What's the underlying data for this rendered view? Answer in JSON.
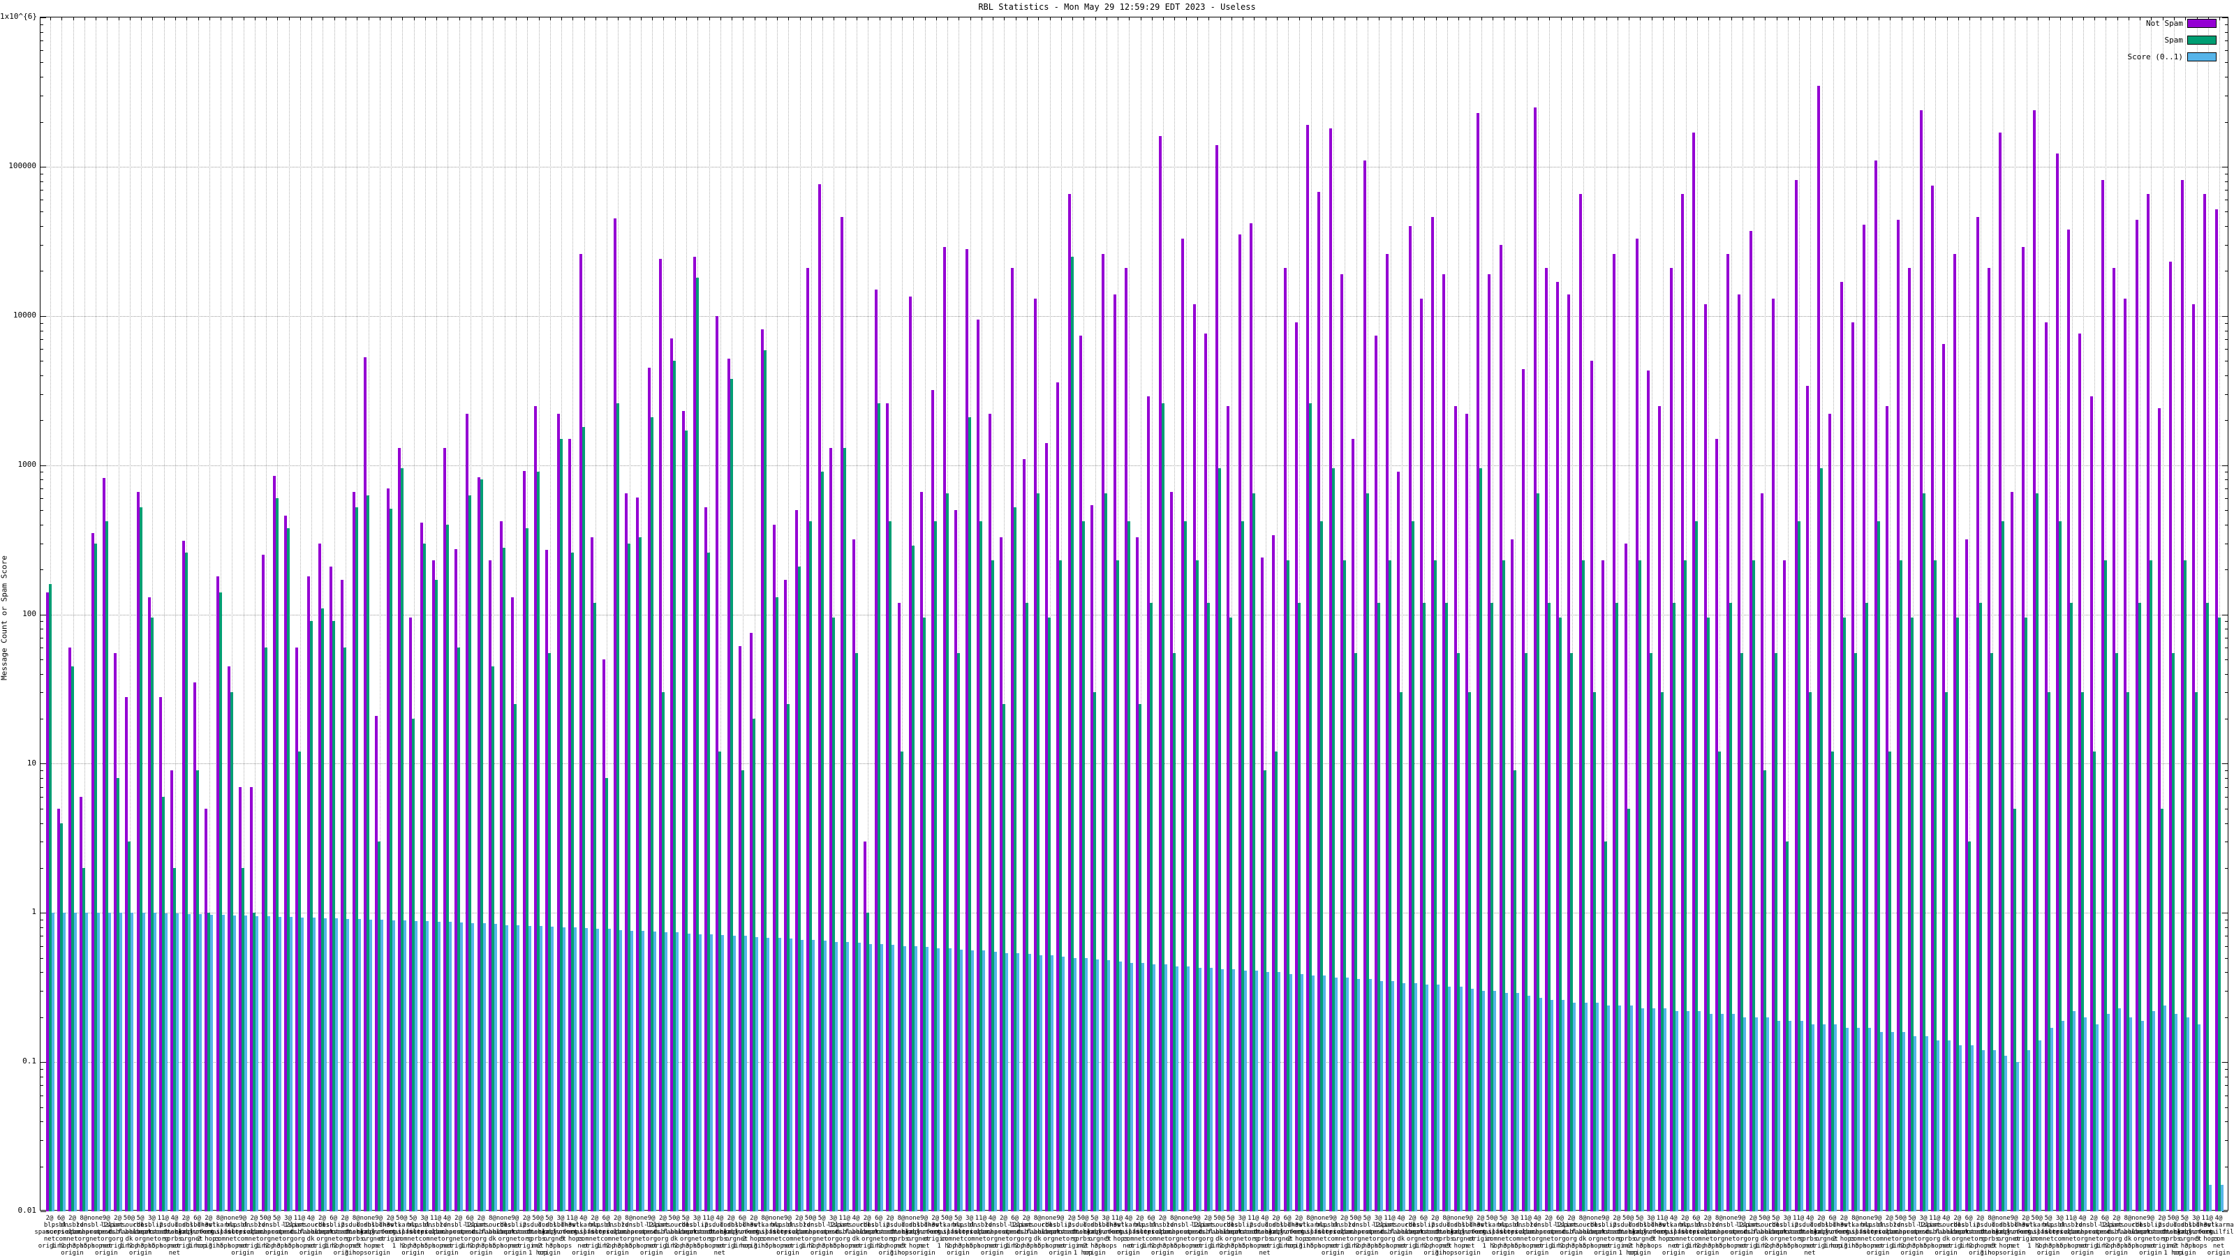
{
  "title": "RBL Statistics - Mon May 29 12:59:29 EDT 2023 - Useless",
  "y_axis": {
    "label": "Message Count or Spam Score",
    "tick_labels": [
      "1x10^{6}",
      "100000",
      "10000",
      "1000",
      "100",
      "10",
      "1",
      "0.1",
      "0.01"
    ]
  },
  "legend": [
    {
      "label": "Not Spam",
      "color": "#9400d3"
    },
    {
      "label": "Spam",
      "color": "#009e73"
    },
    {
      "label": "Score (0..1)",
      "color": "#56b4e9"
    }
  ],
  "colors": {
    "not_spam": "#9400d3",
    "spam": "#009e73",
    "score": "#56b4e9",
    "grid": "#9a9a9a",
    "background": "#ffffff"
  },
  "chart_data": {
    "type": "bar",
    "title": "RBL Statistics - Mon May 29 12:59:29 EDT 2023 - Useless",
    "xlabel": "",
    "ylabel": "Message Count or Spam Score",
    "y_scale": "log",
    "ylim": [
      0.01,
      1000000
    ],
    "grid": true,
    "legend_position": "top-right",
    "categories": [
      "2@\nbl.\nspamcop.\nnet\norigin",
      "6@\npsbl.\nsurriel.\ncom\n1 hop",
      "2@\ndnsbl.\nsorbs.\nnet\n2 hops\norigin",
      "8@\nzen.\nspamhaus.\norg\n3 hops",
      "none\ndnsbl-1.\nuceprotect.\nnet\n5 hops",
      "9@\nl2.\napews.\norg\nnet\norigin",
      "2@\nlist.\ndsbl.\norg\norigin",
      "50@\nspamsources.\nfabel.\ndk\n1 hop",
      "5@\ncbl.\nabuseat.\norg\n2 hops\norigin",
      "3@\ndnsbl-2.\nuceprotect.\nnet\n3 hops",
      "11@\nips.\nbackscatterer.\norg\n5 hops",
      "4@\ndul.\ndnsbl.\nsorbs.\nnet\nnet\norigin",
      "2@\ndnsbl.\nnjabl.\norg\norigin",
      "6@\ndnsbl-3.\nuceprotect.\nnet\n1 hop",
      "2@\ndnswl.\norg\n2 hops\norigin",
      "8@\nhostkarma.\njunkemailfilter.\ncom\n3 hops",
      "none\nbl.\nspamcop.\nnet\n5 hops",
      "9@\npsbl.\nsurriel.\ncom\nnet\norigin",
      "2@\ndnsbl.\nsorbs.\nnet\norigin",
      "50@\nzen.\nspamhaus.\norg\n1 hop",
      "5@\ndnsbl-1.\nuceprotect.\nnet\n2 hops\norigin",
      "3@\nl2.\napews.\norg\n3 hops",
      "11@\nlist.\ndsbl.\norg\n5 hops",
      "4@\nspamsources.\nfabel.\ndk\nnet\norigin",
      "2@\ncbl.\nabuseat.\norg\norigin",
      "6@\ndnsbl-2.\nuceprotect.\nnet\n1 hop",
      "2@\nips.\nbackscatterer.\norg\n2 hops\norigin",
      "8@\ndul.\ndnsbl.\nsorbs.\nnet\n3 hops",
      "none\ndnsbl.\nnjabl.\norg\n5 hops",
      "9@\ndnsbl-3.\nuceprotect.\nnet\nnet\norigin",
      "2@\ndnswl.\norg\norigin",
      "50@\nhostkarma.\njunkemailfilter.\ncom\n1 hop",
      "5@\nbl.\nspamcop.\nnet\n2 hops\norigin",
      "3@\npsbl.\nsurriel.\ncom\n3 hops",
      "11@\ndnsbl.\nsorbs.\nnet\n5 hops",
      "4@\nzen.\nspamhaus.\norg\nnet\norigin",
      "2@\ndnsbl-1.\nuceprotect.\nnet\norigin",
      "6@\nl2.\napews.\norg\n1 hop",
      "2@\nlist.\ndsbl.\norg\n2 hops\norigin",
      "8@\nspamsources.\nfabel.\ndk\n3 hops",
      "none\ncbl.\nabuseat.\norg\n5 hops",
      "9@\ndnsbl-2.\nuceprotect.\nnet\nnet\norigin",
      "2@\nips.\nbackscatterer.\norg\norigin",
      "50@\ndul.\ndnsbl.\nsorbs.\nnet\n1 hop",
      "5@\ndnsbl.\nnjabl.\norg\n2 hops\norigin",
      "3@\ndnsbl-3.\nuceprotect.\nnet\n3 hops",
      "11@\ndnswl.\norg\n5 hops",
      "4@\nhostkarma.\njunkemailfilter.\ncom\nnet\norigin",
      "2@\nbl.\nspamcop.\nnet\norigin",
      "6@\npsbl.\nsurriel.\ncom\n1 hop",
      "2@\ndnsbl.\nsorbs.\nnet\n2 hops\norigin",
      "8@\nzen.\nspamhaus.\norg\n3 hops",
      "none\ndnsbl-1.\nuceprotect.\nnet\n5 hops",
      "9@\nl2.\napews.\norg\nnet\norigin",
      "2@\nlist.\ndsbl.\norg\norigin",
      "50@\nspamsources.\nfabel.\ndk\n1 hop",
      "5@\ncbl.\nabuseat.\norg\n2 hops\norigin",
      "3@\ndnsbl-2.\nuceprotect.\nnet\n3 hops",
      "11@\nips.\nbackscatterer.\norg\n5 hops",
      "4@\ndul.\ndnsbl.\nsorbs.\nnet\nnet\norigin",
      "2@\ndnsbl.\nnjabl.\norg\norigin",
      "6@\ndnsbl-3.\nuceprotect.\nnet\n1 hop",
      "2@\ndnswl.\norg\n2 hops\norigin",
      "8@\nhostkarma.\njunkemailfilter.\ncom\n3 hops",
      "none\nbl.\nspamcop.\nnet\n5 hops",
      "9@\npsbl.\nsurriel.\ncom\nnet\norigin",
      "2@\ndnsbl.\nsorbs.\nnet\norigin",
      "50@\nzen.\nspamhaus.\norg\n1 hop",
      "5@\ndnsbl-1.\nuceprotect.\nnet\n2 hops\norigin",
      "3@\nl2.\napews.\norg\n3 hops",
      "11@\nlist.\ndsbl.\norg\n5 hops",
      "4@\nspamsources.\nfabel.\ndk\nnet\norigin",
      "2@\ncbl.\nabuseat.\norg\norigin",
      "6@\ndnsbl-2.\nuceprotect.\nnet\n1 hop",
      "2@\nips.\nbackscatterer.\norg\n2 hops\norigin",
      "8@\ndul.\ndnsbl.\nsorbs.\nnet\n3 hops",
      "none\ndnsbl.\nnjabl.\norg\n5 hops",
      "9@\ndnsbl-3.\nuceprotect.\nnet\nnet\norigin",
      "2@\ndnswl.\norg\norigin",
      "50@\nhostkarma.\njunkemailfilter.\ncom\n1 hop",
      "5@\nbl.\nspamcop.\nnet\n2 hops\norigin",
      "3@\npsbl.\nsurriel.\ncom\n3 hops",
      "11@\ndnsbl.\nsorbs.\nnet\n5 hops",
      "4@\nzen.\nspamhaus.\norg\nnet\norigin",
      "2@\ndnsbl-1.\nuceprotect.\nnet\norigin",
      "6@\nl2.\napews.\norg\n1 hop",
      "2@\nlist.\ndsbl.\norg\n2 hops\norigin",
      "8@\nspamsources.\nfabel.\ndk\n3 hops",
      "none\ncbl.\nabuseat.\norg\n5 hops",
      "9@\ndnsbl-2.\nuceprotect.\nnet\nnet\norigin",
      "2@\nips.\nbackscatterer.\norg\norigin",
      "50@\ndul.\ndnsbl.\nsorbs.\nnet\n1 hop",
      "5@\ndnsbl.\nnjabl.\norg\n2 hops\norigin",
      "3@\ndnsbl-3.\nuceprotect.\nnet\n3 hops",
      "11@\ndnswl.\norg\n5 hops",
      "4@\nhostkarma.\njunkemailfilter.\ncom\nnet\norigin",
      "2@\nbl.\nspamcop.\nnet\norigin",
      "6@\npsbl.\nsurriel.\ncom\n1 hop",
      "2@\ndnsbl.\nsorbs.\nnet\n2 hops\norigin",
      "8@\nzen.\nspamhaus.\norg\n3 hops",
      "none\ndnsbl-1.\nuceprotect.\nnet\n5 hops",
      "9@\nl2.\napews.\norg\nnet\norigin",
      "2@\nlist.\ndsbl.\norg\norigin",
      "50@\nspamsources.\nfabel.\ndk\n1 hop",
      "5@\ncbl.\nabuseat.\norg\n2 hops\norigin",
      "3@\ndnsbl-2.\nuceprotect.\nnet\n3 hops",
      "11@\nips.\nbackscatterer.\norg\n5 hops",
      "4@\ndul.\ndnsbl.\nsorbs.\nnet\nnet\norigin",
      "2@\ndnsbl.\nnjabl.\norg\norigin",
      "6@\ndnsbl-3.\nuceprotect.\nnet\n1 hop",
      "2@\ndnswl.\norg\n2 hops\norigin",
      "8@\nhostkarma.\njunkemailfilter.\ncom\n3 hops",
      "none\nbl.\nspamcop.\nnet\n5 hops",
      "9@\npsbl.\nsurriel.\ncom\nnet\norigin",
      "2@\ndnsbl.\nsorbs.\nnet\norigin",
      "50@\nzen.\nspamhaus.\norg\n1 hop",
      "5@\ndnsbl-1.\nuceprotect.\nnet\n2 hops\norigin",
      "3@\nl2.\napews.\norg\n3 hops",
      "11@\nlist.\ndsbl.\norg\n5 hops",
      "4@\nspamsources.\nfabel.\ndk\nnet\norigin",
      "2@\ncbl.\nabuseat.\norg\norigin",
      "6@\ndnsbl-2.\nuceprotect.\nnet\n1 hop",
      "2@\nips.\nbackscatterer.\norg\n2 hops\norigin",
      "8@\ndul.\ndnsbl.\nsorbs.\nnet\n3 hops",
      "none\ndnsbl.\nnjabl.\norg\n5 hops",
      "9@\ndnsbl-3.\nuceprotect.\nnet\nnet\norigin",
      "2@\ndnswl.\norg\norigin",
      "50@\nhostkarma.\njunkemailfilter.\ncom\n1 hop",
      "5@\nbl.\nspamcop.\nnet\n2 hops\norigin",
      "3@\npsbl.\nsurriel.\ncom\n3 hops",
      "11@\ndnsbl.\nsorbs.\nnet\n5 hops",
      "4@\nzen.\nspamhaus.\norg\nnet\norigin",
      "2@\ndnsbl-1.\nuceprotect.\nnet\norigin",
      "6@\nl2.\napews.\norg\n1 hop",
      "2@\nlist.\ndsbl.\norg\n2 hops\norigin",
      "8@\nspamsources.\nfabel.\ndk\n3 hops",
      "none\ncbl.\nabuseat.\norg\n5 hops",
      "9@\ndnsbl-2.\nuceprotect.\nnet\nnet\norigin",
      "2@\nips.\nbackscatterer.\norg\norigin",
      "50@\ndul.\ndnsbl.\nsorbs.\nnet\n1 hop",
      "5@\ndnsbl.\nnjabl.\norg\n2 hops\norigin",
      "3@\ndnsbl-3.\nuceprotect.\nnet\n3 hops",
      "11@\ndnswl.\norg\n5 hops",
      "4@\nhostkarma.\njunkemailfilter.\ncom\nnet\norigin",
      "2@\nbl.\nspamcop.\nnet\norigin",
      "6@\npsbl.\nsurriel.\ncom\n1 hop",
      "2@\ndnsbl.\nsorbs.\nnet\n2 hops\norigin",
      "8@\nzen.\nspamhaus.\norg\n3 hops",
      "none\ndnsbl-1.\nuceprotect.\nnet\n5 hops",
      "9@\nl2.\napews.\norg\nnet\norigin",
      "2@\nlist.\ndsbl.\norg\norigin",
      "50@\nspamsources.\nfabel.\ndk\n1 hop",
      "5@\ncbl.\nabuseat.\norg\n2 hops\norigin",
      "3@\ndnsbl-2.\nuceprotect.\nnet\n3 hops",
      "11@\nips.\nbackscatterer.\norg\n5 hops",
      "4@\ndul.\ndnsbl.\nsorbs.\nnet\nnet\norigin",
      "2@\ndnsbl.\nnjabl.\norg\norigin",
      "6@\ndnsbl-3.\nuceprotect.\nnet\n1 hop",
      "2@\ndnswl.\norg\n2 hops\norigin",
      "8@\nhostkarma.\njunkemailfilter.\ncom\n3 hops",
      "none\nbl.\nspamcop.\nnet\n5 hops",
      "9@\npsbl.\nsurriel.\ncom\nnet\norigin",
      "2@\ndnsbl.\nsorbs.\nnet\norigin",
      "50@\nzen.\nspamhaus.\norg\n1 hop",
      "5@\ndnsbl-1.\nuceprotect.\nnet\n2 hops\norigin",
      "3@\nl2.\napews.\norg\n3 hops",
      "11@\nlist.\ndsbl.\norg\n5 hops",
      "4@\nspamsources.\nfabel.\ndk\nnet\norigin",
      "2@\ncbl.\nabuseat.\norg\norigin",
      "6@\ndnsbl-2.\nuceprotect.\nnet\n1 hop",
      "2@\nips.\nbackscatterer.\norg\n2 hops\norigin",
      "8@\ndul.\ndnsbl.\nsorbs.\nnet\n3 hops",
      "none\ndnsbl.\nnjabl.\norg\n5 hops",
      "9@\ndnsbl-3.\nuceprotect.\nnet\nnet\norigin",
      "2@\ndnswl.\norg\norigin",
      "50@\nhostkarma.\njunkemailfilter.\ncom\n1 hop",
      "5@\nbl.\nspamcop.\nnet\n2 hops\norigin",
      "3@\npsbl.\nsurriel.\ncom\n3 hops",
      "11@\ndnsbl.\nsorbs.\nnet\n5 hops",
      "4@\nzen.\nspamhaus.\norg\nnet\norigin",
      "2@\ndnsbl-1.\nuceprotect.\nnet\norigin",
      "6@\nl2.\napews.\norg\n1 hop",
      "2@\nlist.\ndsbl.\norg\n2 hops\norigin",
      "8@\nspamsources.\nfabel.\ndk\n3 hops",
      "none\ncbl.\nabuseat.\norg\n5 hops",
      "9@\ndnsbl-2.\nuceprotect.\nnet\nnet\norigin",
      "2@\nips.\nbackscatterer.\norg\norigin",
      "50@\ndul.\ndnsbl.\nsorbs.\nnet\n1 hop",
      "5@\ndnsbl.\nnjabl.\norg\n2 hops\norigin",
      "3@\ndnsbl-3.\nuceprotect.\nnet\n3 hops",
      "11@\ndnswl.\norg\n5 hops",
      "4@\nhostkarma.\njunkemailfilter.\ncom\nnet\norigin"
    ],
    "series": [
      {
        "name": "Not Spam",
        "color": "#9400d3",
        "values": [
          140,
          5,
          60,
          6,
          350,
          820,
          55,
          28,
          660,
          130,
          28,
          9,
          310,
          35,
          5,
          180,
          45,
          7,
          7,
          250,
          850,
          460,
          60,
          180,
          300,
          210,
          170,
          660,
          5300,
          21,
          700,
          1300,
          95,
          410,
          230,
          1300,
          275,
          2200,
          830,
          230,
          420,
          130,
          910,
          2500,
          270,
          2200,
          1500,
          26000,
          330,
          50,
          45000,
          650,
          610,
          4500,
          24000,
          7100,
          2300,
          25000,
          520,
          10000,
          5200,
          61,
          75,
          8100,
          400,
          170,
          500,
          21000,
          76000,
          1300,
          46000,
          320,
          3,
          15000,
          2600,
          120,
          13500,
          660,
          3200,
          29000,
          500,
          28000,
          9500,
          2200,
          330,
          21000,
          1100,
          13000,
          1400,
          3600,
          66000,
          7400,
          540,
          26000,
          14000,
          21000,
          330,
          2900,
          160000,
          660,
          33000,
          12000,
          7600,
          140000,
          2500,
          35000,
          42000,
          240,
          340,
          21000,
          9100,
          190000,
          68000,
          180000,
          19000,
          1500,
          110000,
          7400,
          26000,
          900,
          40000,
          13000,
          46000,
          19000,
          2500,
          2200,
          230000,
          19000,
          30000,
          320,
          4400,
          250000,
          21000,
          17000,
          14000,
          66000,
          5000,
          230,
          26000,
          300,
          33000,
          4300,
          2500,
          21000,
          66000,
          170000,
          12000,
          1500,
          26000,
          14000,
          37000,
          650,
          13000,
          230,
          81000,
          3400,
          350000,
          2200,
          17000,
          9100,
          41000,
          110000,
          2500,
          44000,
          21000,
          240000,
          75000,
          6500,
          26000,
          320,
          46000,
          21000,
          170000,
          660,
          29000,
          240000,
          9100,
          123000,
          38000,
          7600,
          2900,
          81000,
          21000,
          13000,
          44000,
          66000,
          2400,
          23000,
          81000,
          12000,
          66000,
          52000
        ]
      },
      {
        "name": "Spam",
        "color": "#009e73",
        "values": [
          160,
          4,
          45,
          2,
          300,
          420,
          8,
          3,
          520,
          95,
          6,
          2,
          260,
          9,
          1,
          140,
          30,
          2,
          1,
          60,
          600,
          380,
          12,
          90,
          110,
          90,
          60,
          520,
          630,
          3,
          510,
          950,
          20,
          300,
          170,
          400,
          60,
          630,
          800,
          45,
          280,
          25,
          380,
          900,
          55,
          1500,
          260,
          1800,
          120,
          8,
          2600,
          300,
          330,
          2100,
          30,
          5000,
          1700,
          18000,
          260,
          12,
          3800,
          9,
          20,
          5900,
          130,
          25,
          210,
          420,
          900,
          95,
          1300,
          55,
          1,
          2600,
          420,
          12,
          290,
          95,
          420,
          650,
          55,
          2100,
          420,
          230,
          25,
          520,
          120,
          650,
          95,
          230,
          25000,
          420,
          30,
          650,
          230,
          420,
          25,
          120,
          2600,
          55,
          420,
          230,
          120,
          950,
          95,
          420,
          650,
          9,
          12,
          230,
          120,
          2600,
          420,
          950,
          230,
          55,
          650,
          120,
          230,
          30,
          420,
          120,
          230,
          120,
          55,
          30,
          950,
          120,
          230,
          9,
          55,
          650,
          120,
          95,
          55,
          230,
          30,
          3,
          120,
          5,
          230,
          55,
          30,
          120,
          230,
          420,
          95,
          12,
          120,
          55,
          230,
          9,
          55,
          3,
          420,
          30,
          950,
          12,
          95,
          55,
          120,
          420,
          12,
          230,
          95,
          650,
          230,
          30,
          95,
          3,
          120,
          55,
          420,
          5,
          95,
          650,
          30,
          420,
          120,
          30,
          12,
          230,
          55,
          30,
          120,
          230,
          5,
          55,
          230,
          30,
          120,
          95
        ]
      },
      {
        "name": "Score (0..1)",
        "color": "#56b4e9",
        "values": [
          1.0,
          1.0,
          1.0,
          1.0,
          1.0,
          1.0,
          1.0,
          1.0,
          1.0,
          1.0,
          0.99,
          0.99,
          0.98,
          0.98,
          0.97,
          0.97,
          0.96,
          0.96,
          0.95,
          0.95,
          0.94,
          0.94,
          0.93,
          0.93,
          0.92,
          0.92,
          0.91,
          0.91,
          0.9,
          0.9,
          0.89,
          0.89,
          0.88,
          0.88,
          0.87,
          0.87,
          0.86,
          0.85,
          0.85,
          0.84,
          0.83,
          0.83,
          0.82,
          0.82,
          0.81,
          0.8,
          0.8,
          0.79,
          0.78,
          0.78,
          0.77,
          0.76,
          0.76,
          0.75,
          0.74,
          0.74,
          0.73,
          0.72,
          0.72,
          0.71,
          0.7,
          0.7,
          0.69,
          0.68,
          0.68,
          0.67,
          0.66,
          0.66,
          0.65,
          0.64,
          0.64,
          0.63,
          0.62,
          0.62,
          0.61,
          0.6,
          0.6,
          0.59,
          0.58,
          0.58,
          0.57,
          0.56,
          0.56,
          0.55,
          0.54,
          0.54,
          0.53,
          0.52,
          0.52,
          0.51,
          0.5,
          0.5,
          0.49,
          0.48,
          0.47,
          0.46,
          0.46,
          0.45,
          0.45,
          0.44,
          0.44,
          0.43,
          0.43,
          0.42,
          0.42,
          0.41,
          0.41,
          0.4,
          0.4,
          0.39,
          0.39,
          0.38,
          0.38,
          0.37,
          0.37,
          0.36,
          0.36,
          0.35,
          0.35,
          0.34,
          0.34,
          0.33,
          0.33,
          0.32,
          0.32,
          0.31,
          0.3,
          0.3,
          0.29,
          0.29,
          0.28,
          0.27,
          0.26,
          0.26,
          0.25,
          0.25,
          0.25,
          0.24,
          0.24,
          0.24,
          0.23,
          0.23,
          0.23,
          0.22,
          0.22,
          0.22,
          0.21,
          0.21,
          0.21,
          0.2,
          0.2,
          0.2,
          0.19,
          0.19,
          0.19,
          0.18,
          0.18,
          0.18,
          0.17,
          0.17,
          0.17,
          0.16,
          0.16,
          0.16,
          0.15,
          0.15,
          0.14,
          0.14,
          0.13,
          0.13,
          0.12,
          0.12,
          0.11,
          0.1,
          0.12,
          0.14,
          0.17,
          0.19,
          0.22,
          0.2,
          0.18,
          0.21,
          0.23,
          0.2,
          0.19,
          0.22,
          0.24,
          0.21,
          0.2,
          0.18,
          0.015,
          0.015
        ]
      }
    ]
  }
}
